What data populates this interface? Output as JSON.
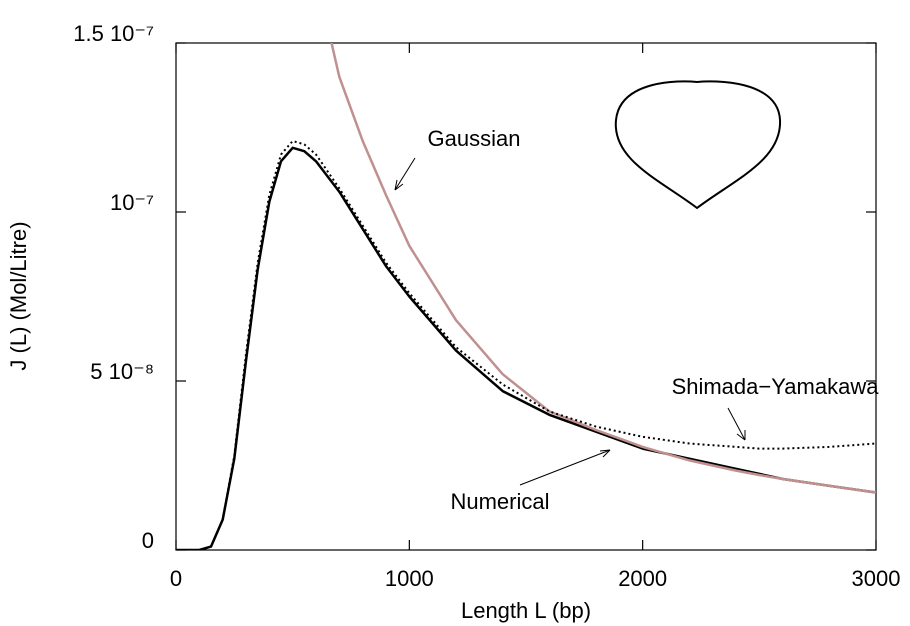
{
  "chart_data": {
    "type": "line",
    "xlabel": "Length L (bp)",
    "ylabel": "J (L) (Mol/Litre)",
    "x": [
      0,
      100,
      150,
      200,
      250,
      300,
      350,
      400,
      450,
      500,
      550,
      600,
      700,
      800,
      900,
      1000,
      1200,
      1400,
      1600,
      1800,
      2000,
      2200,
      2400,
      2500,
      2600,
      2800,
      3000
    ],
    "series": [
      {
        "name": "Numerical",
        "color": "#000000",
        "style": "solid",
        "values": [
          0,
          0,
          1e-09,
          9e-09,
          2.7e-08,
          5.6e-08,
          8.3e-08,
          1.03e-07,
          1.15e-07,
          1.19e-07,
          1.18e-07,
          1.15e-07,
          1.06e-07,
          9.5e-08,
          8.4e-08,
          7.5e-08,
          5.9e-08,
          4.7e-08,
          4e-08,
          3.5e-08,
          3e-08,
          2.7e-08,
          2.4e-08,
          2.25e-08,
          2.1e-08,
          1.9e-08,
          1.7e-08
        ]
      },
      {
        "name": "Gaussian",
        "color": "#c09090",
        "style": "solid",
        "values": [
          null,
          null,
          null,
          null,
          null,
          null,
          null,
          null,
          null,
          null,
          null,
          1.7e-07,
          1.4e-07,
          1.21e-07,
          1.05e-07,
          9e-08,
          6.8e-08,
          5.2e-08,
          4.1e-08,
          3.55e-08,
          3.05e-08,
          2.65e-08,
          2.35e-08,
          2.22e-08,
          2.1e-08,
          1.9e-08,
          1.7e-08
        ]
      },
      {
        "name": "Shimada−Yamakawa",
        "color": "#000000",
        "style": "dotted",
        "values": [
          0,
          0,
          1e-09,
          9e-09,
          2.8e-08,
          5.8e-08,
          8.5e-08,
          1.05e-07,
          1.17e-07,
          1.21e-07,
          1.2e-07,
          1.17e-07,
          1.07e-07,
          9.6e-08,
          8.5e-08,
          7.6e-08,
          6e-08,
          4.9e-08,
          4.1e-08,
          3.65e-08,
          3.35e-08,
          3.15e-08,
          3.05e-08,
          3e-08,
          3e-08,
          3.05e-08,
          3.15e-08
        ]
      }
    ],
    "annotations": [
      "Gaussian",
      "Shimada−Yamakawa",
      "Numerical"
    ],
    "xlim": [
      0,
      3000
    ],
    "xticks": [
      0,
      1000,
      2000,
      3000
    ],
    "ylim": [
      0,
      1.5e-07
    ],
    "yticks": [
      0,
      {
        "value": 5e-08,
        "label": "5 10⁻⁸"
      },
      {
        "value": 1e-07,
        "label": "10⁻⁷"
      },
      {
        "value": 1.5e-07,
        "label": "1.5 10⁻⁷"
      }
    ],
    "grid": false
  }
}
